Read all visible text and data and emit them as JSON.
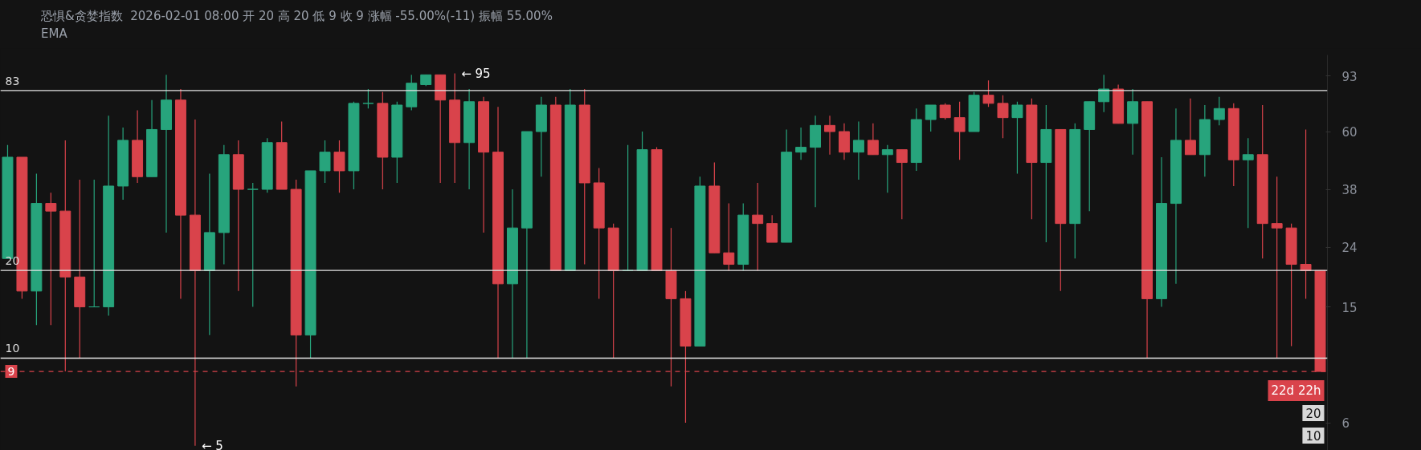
{
  "chart_data": {
    "type": "candlestick",
    "title": "恐惧&贪婪指数",
    "subtitle": "2026-02-01 08:00 开 20 高 20 低 9 收 9 涨幅 -55.00%(-11) 振幅 55.00%",
    "categories": [
      null,
      null,
      null,
      null,
      null,
      null,
      null,
      null,
      null,
      null,
      null,
      null,
      null,
      null,
      null,
      null,
      null,
      null,
      null,
      null,
      null,
      null,
      null,
      null,
      null,
      null,
      null,
      null,
      null,
      null,
      null,
      null,
      null,
      null,
      null,
      null,
      null,
      null,
      null,
      null,
      null,
      null,
      null,
      null,
      null,
      null,
      null,
      null,
      null,
      null,
      null,
      null,
      null,
      null,
      null,
      null,
      null,
      null,
      null,
      null,
      null,
      null,
      null,
      null,
      null,
      null,
      null,
      null,
      null,
      null,
      null,
      null,
      null,
      null,
      null,
      null,
      null,
      null,
      null,
      null,
      null,
      null,
      null,
      null,
      null,
      null,
      null,
      null,
      null,
      null,
      null,
      null
    ],
    "ohlc": [
      [
        22,
        54,
        22,
        49
      ],
      [
        49,
        49,
        16,
        17
      ],
      [
        17,
        43,
        13,
        34
      ],
      [
        34,
        37,
        13,
        32
      ],
      [
        32,
        56,
        9,
        19
      ],
      [
        19,
        41,
        10,
        15
      ],
      [
        15,
        41,
        15,
        15
      ],
      [
        15,
        68,
        14,
        39
      ],
      [
        39,
        62,
        35,
        56
      ],
      [
        56,
        71,
        40,
        42
      ],
      [
        42,
        77,
        42,
        61
      ],
      [
        61,
        94,
        27,
        77
      ],
      [
        77,
        84,
        16,
        31
      ],
      [
        31,
        66,
        5,
        20
      ],
      [
        20,
        43,
        12,
        27
      ],
      [
        27,
        54,
        21,
        50
      ],
      [
        50,
        56,
        17,
        38
      ],
      [
        38,
        40,
        15,
        38
      ],
      [
        38,
        57,
        37,
        55
      ],
      [
        55,
        65,
        38,
        38
      ],
      [
        38,
        41,
        8,
        12
      ],
      [
        12,
        44,
        10,
        44
      ],
      [
        44,
        56,
        40,
        51
      ],
      [
        51,
        56,
        37,
        44
      ],
      [
        44,
        76,
        38,
        75
      ],
      [
        75,
        84,
        72,
        75
      ],
      [
        75,
        82,
        38,
        49
      ],
      [
        49,
        76,
        40,
        74
      ],
      [
        73,
        94,
        71,
        88
      ],
      [
        87,
        94,
        86,
        94
      ],
      [
        94,
        94,
        40,
        77
      ],
      [
        77,
        95,
        40,
        55
      ],
      [
        55,
        84,
        38,
        76
      ],
      [
        76,
        79,
        27,
        51
      ],
      [
        51,
        73,
        10,
        18
      ],
      [
        18,
        38,
        10,
        28
      ],
      [
        28,
        60,
        10,
        60
      ],
      [
        60,
        79,
        42,
        74
      ],
      [
        74,
        79,
        20,
        20
      ],
      [
        20,
        84,
        20,
        74
      ],
      [
        74,
        84,
        21,
        40
      ],
      [
        40,
        45,
        16,
        28
      ],
      [
        28,
        29,
        10,
        20
      ],
      [
        20,
        54,
        20,
        20
      ],
      [
        20,
        60,
        20,
        52
      ],
      [
        52,
        53,
        20,
        20
      ],
      [
        20,
        28,
        8,
        16
      ],
      [
        16,
        17,
        6,
        11
      ],
      [
        11,
        42,
        11,
        39
      ],
      [
        39,
        47,
        23,
        23
      ],
      [
        23,
        34,
        20,
        21
      ],
      [
        21,
        34,
        20,
        31
      ],
      [
        31,
        40,
        20,
        29
      ],
      [
        29,
        31,
        25,
        25
      ],
      [
        25,
        61,
        25,
        51
      ],
      [
        51,
        62,
        48,
        53
      ],
      [
        53,
        68,
        33,
        63
      ],
      [
        63,
        68,
        50,
        60
      ],
      [
        60,
        64,
        48,
        51
      ],
      [
        51,
        65,
        41,
        56
      ],
      [
        56,
        64,
        50,
        50
      ],
      [
        50,
        54,
        37,
        52
      ],
      [
        52,
        52,
        30,
        47
      ],
      [
        47,
        72,
        44,
        66
      ],
      [
        66,
        74,
        60,
        74
      ],
      [
        74,
        75,
        66,
        67
      ],
      [
        67,
        76,
        48,
        60
      ],
      [
        60,
        82,
        60,
        80
      ],
      [
        80,
        90,
        73,
        75
      ],
      [
        75,
        80,
        57,
        67
      ],
      [
        67,
        76,
        43,
        74
      ],
      [
        74,
        78,
        30,
        47
      ],
      [
        47,
        74,
        25,
        61
      ],
      [
        61,
        61,
        17,
        29
      ],
      [
        29,
        64,
        22,
        61
      ],
      [
        61,
        76,
        32,
        76
      ],
      [
        76,
        94,
        70,
        84
      ],
      [
        84,
        87,
        64,
        64
      ],
      [
        64,
        84,
        50,
        76
      ],
      [
        76,
        76,
        10,
        16
      ],
      [
        16,
        49,
        15,
        34
      ],
      [
        34,
        72,
        18,
        56
      ],
      [
        56,
        78,
        50,
        50
      ],
      [
        50,
        74,
        42,
        66
      ],
      [
        66,
        79,
        63,
        72
      ],
      [
        72,
        75,
        39,
        48
      ],
      [
        48,
        57,
        28,
        50
      ],
      [
        50,
        74,
        22,
        29
      ],
      [
        29,
        42,
        10,
        28
      ],
      [
        28,
        29,
        11,
        21
      ],
      [
        21,
        61,
        16,
        20
      ],
      [
        20,
        20,
        9,
        9
      ]
    ],
    "colors": [
      "#27a47c",
      "#d9434b",
      "#27a47c",
      "#d9434b",
      "#d9434b",
      "#d9434b",
      "#27a47c",
      "#27a47c",
      "#27a47c",
      "#d9434b",
      "#27a47c",
      "#27a47c",
      "#d9434b",
      "#d9434b",
      "#27a47c",
      "#27a47c",
      "#d9434b",
      "#27a47c",
      "#27a47c",
      "#d9434b",
      "#d9434b",
      "#27a47c",
      "#27a47c",
      "#d9434b",
      "#27a47c",
      "#27a47c",
      "#d9434b",
      "#27a47c",
      "#27a47c",
      "#27a47c",
      "#d9434b",
      "#d9434b",
      "#27a47c",
      "#d9434b",
      "#d9434b",
      "#27a47c",
      "#27a47c",
      "#27a47c",
      "#d9434b",
      "#27a47c",
      "#d9434b",
      "#d9434b",
      "#d9434b",
      "#27a47c",
      "#27a47c",
      "#d9434b",
      "#d9434b",
      "#d9434b",
      "#27a47c",
      "#d9434b",
      "#d9434b",
      "#27a47c",
      "#d9434b",
      "#d9434b",
      "#27a47c",
      "#27a47c",
      "#27a47c",
      "#d9434b",
      "#d9434b",
      "#27a47c",
      "#d9434b",
      "#27a47c",
      "#d9434b",
      "#27a47c",
      "#27a47c",
      "#d9434b",
      "#d9434b",
      "#27a47c",
      "#d9434b",
      "#d9434b",
      "#27a47c",
      "#d9434b",
      "#27a47c",
      "#d9434b",
      "#27a47c",
      "#27a47c",
      "#27a47c",
      "#d9434b",
      "#27a47c",
      "#d9434b",
      "#27a47c",
      "#27a47c",
      "#d9434b",
      "#27a47c",
      "#27a47c",
      "#d9434b",
      "#27a47c",
      "#d9434b",
      "#d9434b",
      "#d9434b",
      "#d9434b",
      "#d9434b"
    ],
    "log": true,
    "ylim": [
      4.7,
      110
    ],
    "yticks": [
      6,
      15,
      24,
      38,
      60,
      93
    ],
    "tick_labels": "y",
    "ref_lines": [
      {
        "axis": "y",
        "value": 83,
        "label": "83",
        "color": "#e6e6e6",
        "line_style": "solid"
      },
      {
        "axis": "y",
        "value": 20,
        "label": "20",
        "color": "#e6e6e6",
        "line_style": "solid"
      },
      {
        "axis": "y",
        "value": 10,
        "label": "10",
        "color": "#e6e6e6",
        "line_style": "solid"
      },
      {
        "axis": "y",
        "value": 9,
        "label": "9",
        "color": "#d9434b",
        "line_style": "dashed"
      }
    ],
    "annotations": [
      "EMA",
      "← 95",
      "← 5",
      "22d 22h",
      "20",
      "10"
    ]
  }
}
